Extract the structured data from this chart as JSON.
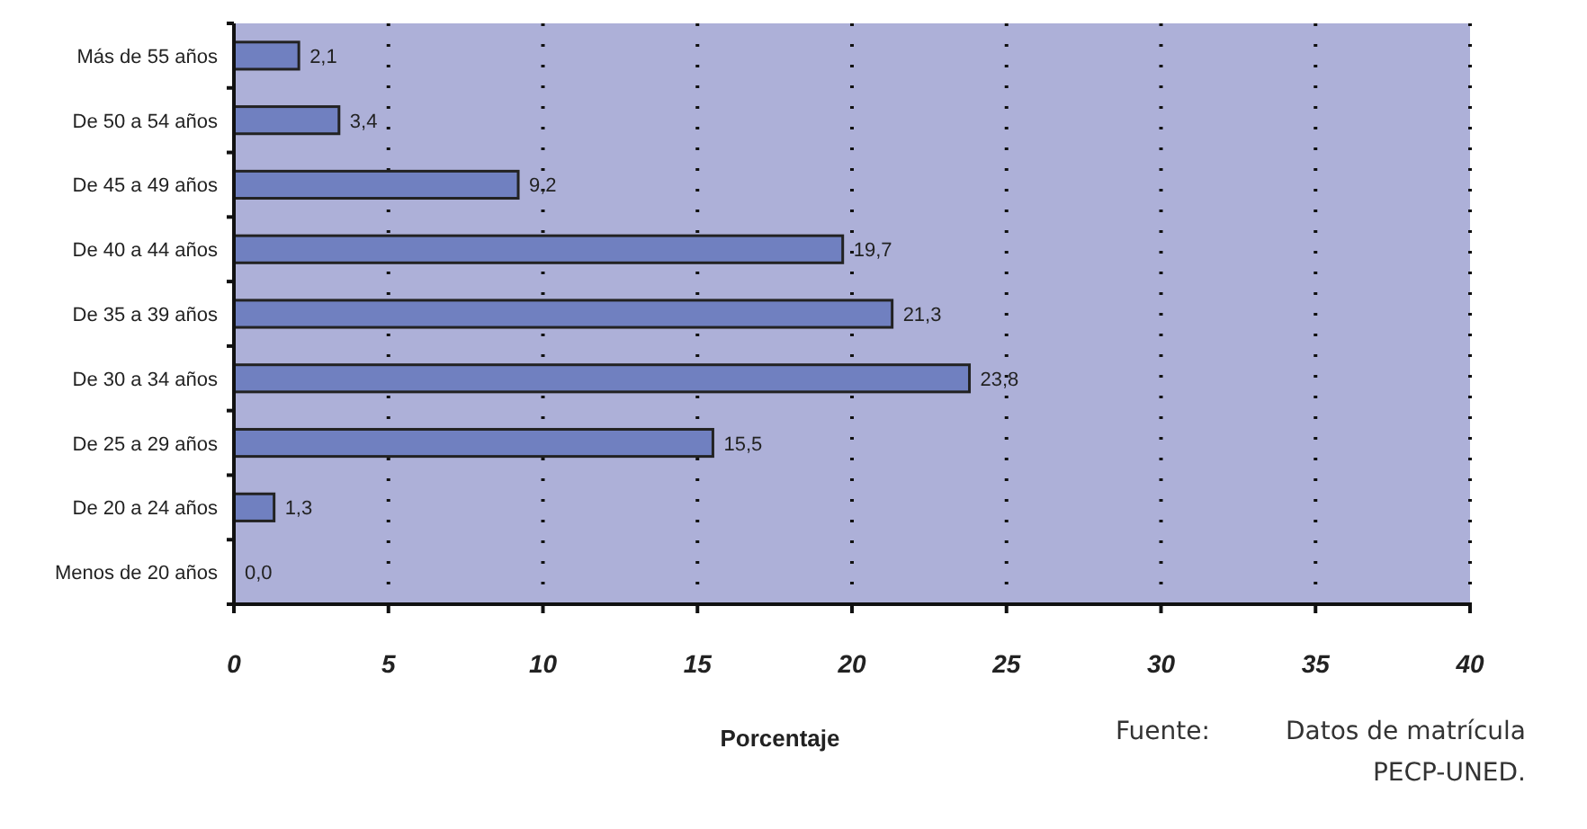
{
  "chart_data": {
    "type": "bar",
    "orientation": "horizontal",
    "xlabel": "Porcentaje",
    "categories": [
      "Más de 55 años",
      "De 50 a 54 años",
      "De 45 a 49 años",
      "De 40 a 44 años",
      "De 35 a 39 años",
      "De 30 a 34 años",
      "De 25 a 29 años",
      "De 20 a 24 años",
      "Menos de 20 años"
    ],
    "values": [
      2.1,
      3.4,
      9.2,
      19.7,
      21.3,
      23.8,
      15.5,
      1.3,
      0.0
    ],
    "value_labels": [
      "2,1",
      "3,4",
      "9,2",
      "19,7",
      "21,3",
      "23,8",
      "15,5",
      "1,3",
      "0,0"
    ],
    "color": "#7080c0",
    "xlim": [
      0,
      40
    ],
    "xticks": [
      0,
      5,
      10,
      15,
      20,
      25,
      30,
      35,
      40
    ],
    "grid": "x",
    "annotations": [
      "Fuente:",
      "Datos de matrícula",
      "PECP-UNED."
    ]
  }
}
